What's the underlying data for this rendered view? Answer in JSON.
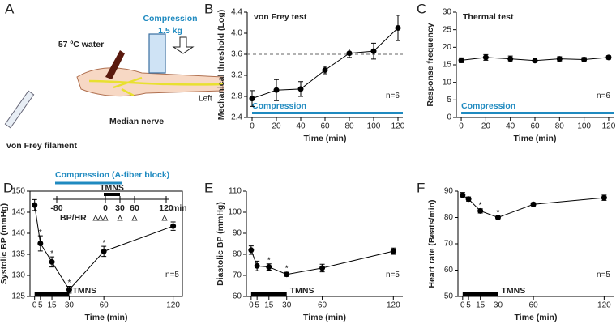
{
  "illustration": {
    "panel": "A",
    "compression": "Compression",
    "weight": "1.5 kg",
    "water": "57 ºC water",
    "filament": "von Frey filament",
    "nerve": "Median nerve",
    "side": "Left"
  },
  "chart_data": [
    {
      "type": "line",
      "panel": "B",
      "title": "von Frey test",
      "ylabel": "Mechanical threshold (Log)",
      "xlabel": "Time (min)",
      "x": [
        0,
        20,
        40,
        60,
        80,
        100,
        120
      ],
      "values": [
        2.76,
        2.92,
        2.94,
        3.3,
        3.62,
        3.66,
        4.1
      ],
      "errors": [
        0.15,
        0.2,
        0.14,
        0.07,
        0.08,
        0.15,
        0.24
      ],
      "xlim": [
        -4,
        124
      ],
      "xticks": [
        0,
        20,
        40,
        60,
        80,
        100,
        120
      ],
      "ylim": [
        2.4,
        4.4
      ],
      "yticks": [
        2.4,
        2.8,
        3.2,
        3.6,
        {
          "value": 4,
          "label": "4.0"
        },
        4.4
      ],
      "reference_line": 3.6,
      "n_label": "n=6",
      "bar": {
        "label": "Compression",
        "xrange": [
          0,
          124
        ],
        "color": "#1f8ac0",
        "label_position": "above"
      },
      "box": false
    },
    {
      "type": "line",
      "panel": "C",
      "title": "Thermal test",
      "ylabel": "Response frequency",
      "xlabel": "Time (min)",
      "x": [
        0,
        20,
        40,
        60,
        80,
        100,
        120
      ],
      "values": [
        16.3,
        17.1,
        16.7,
        16.2,
        16.7,
        16.5,
        17.1
      ],
      "errors": [
        0.7,
        0.8,
        0.8,
        0.5,
        0.6,
        0.6,
        0.5
      ],
      "xlim": [
        -4,
        124
      ],
      "xticks": [
        0,
        20,
        40,
        60,
        80,
        100,
        120
      ],
      "ylim": [
        0,
        30
      ],
      "yticks": [
        0,
        5,
        10,
        15,
        20,
        25,
        30
      ],
      "n_label": "n=6",
      "bar": {
        "label": "Compression",
        "xrange": [
          0,
          124
        ],
        "color": "#1f8ac0",
        "label_position": "above"
      },
      "box": false
    },
    {
      "type": "line",
      "panel": "D",
      "ylabel": "Systolic BP (mmHg)",
      "xlabel": "Time (min)",
      "x": [
        0,
        5,
        15,
        30,
        60,
        120
      ],
      "values": [
        146.7,
        137.6,
        133.2,
        126.6,
        135.7,
        141.7
      ],
      "errors": [
        1.3,
        1.8,
        1.2,
        0.8,
        1.2,
        1.0
      ],
      "significance": [
        null,
        "*",
        "*",
        "*",
        "*",
        null
      ],
      "xlim": [
        -4,
        128
      ],
      "xticks": [
        0,
        5,
        15,
        30,
        60,
        120
      ],
      "ylim": [
        125,
        150
      ],
      "yticks": [
        125,
        130,
        135,
        140,
        145,
        150
      ],
      "n_label": "n=5",
      "bar": {
        "label": "TMNS",
        "xrange": [
          0,
          30
        ],
        "color": "#000000",
        "label_position": "right"
      },
      "box": true,
      "timeline": {
        "compression": "Compression (A-fiber block)",
        "tmns": "TMNS",
        "bp_hr": "BP/HR",
        "ticks": [
          "-80",
          "0",
          "30",
          "60",
          "120"
        ],
        "unit": "min"
      }
    },
    {
      "type": "line",
      "panel": "E",
      "ylabel": "Diastolic BP (mmHg)",
      "xlabel": "Time (min)",
      "x": [
        0,
        5,
        15,
        30,
        60,
        120
      ],
      "values": [
        82,
        74.5,
        74,
        70.5,
        73.5,
        81.5
      ],
      "errors": [
        2,
        2.3,
        1.5,
        1,
        1.8,
        1.5
      ],
      "significance": [
        null,
        null,
        "*",
        "*",
        null,
        null
      ],
      "xlim": [
        -4,
        128
      ],
      "xticks": [
        0,
        5,
        15,
        30,
        60,
        120
      ],
      "ylim": [
        60,
        110
      ],
      "yticks": [
        60,
        70,
        80,
        90,
        100,
        110
      ],
      "n_label": "n=5",
      "bar": {
        "label": "TMNS",
        "xrange": [
          0,
          30
        ],
        "color": "#000000",
        "label_position": "right"
      },
      "box": false
    },
    {
      "type": "line",
      "panel": "F",
      "ylabel": "Heart rate (Beats/min)",
      "xlabel": "Time (min)",
      "x": [
        0,
        5,
        15,
        30,
        60,
        120
      ],
      "values": [
        88.5,
        87,
        82.5,
        80,
        85,
        87.5
      ],
      "errors": [
        1,
        0.8,
        0.8,
        0.5,
        0.6,
        1
      ],
      "significance": [
        null,
        null,
        "*",
        "*",
        null,
        null
      ],
      "xlim": [
        -4,
        128
      ],
      "xticks": [
        0,
        5,
        15,
        30,
        60,
        120
      ],
      "ylim": [
        50,
        90
      ],
      "yticks": [
        50,
        60,
        70,
        80,
        90
      ],
      "n_label": "n=5",
      "bar": {
        "label": "TMNS",
        "xrange": [
          0,
          30
        ],
        "color": "#000000",
        "label_position": "right"
      },
      "box": false
    }
  ]
}
